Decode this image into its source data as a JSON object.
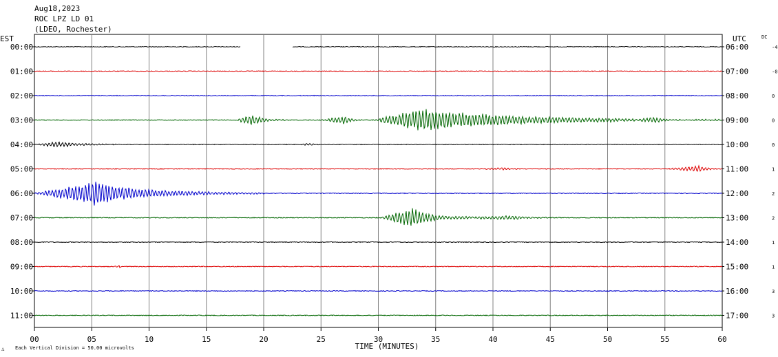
{
  "header": {
    "date": "Aug18,2023",
    "station": "ROC LPZ LD 01",
    "network": "(LDEO, Rochester)"
  },
  "left_axis_label": "EST",
  "right_axis_label": "UTC",
  "dc_label": "DC",
  "footer_note": "Each Vertical Division =   50.00 microvolts",
  "chart_data": {
    "type": "line",
    "title": "",
    "xlabel": "TIME (MINUTES)",
    "ylabel": "",
    "xlim": [
      0,
      60
    ],
    "x_ticks": [
      "00",
      "05",
      "10",
      "15",
      "20",
      "25",
      "30",
      "35",
      "40",
      "45",
      "50",
      "55",
      "60"
    ],
    "grid": true,
    "trace_colors": [
      "#000000",
      "#dd0000",
      "#0000cc",
      "#006600"
    ],
    "rows": [
      {
        "est": "00:00",
        "utc": "06:00",
        "dc": "-4",
        "color": "#000000",
        "gaps": [
          [
            18,
            22.5
          ]
        ],
        "events": []
      },
      {
        "est": "01:00",
        "utc": "07:00",
        "dc": "-0",
        "color": "#dd0000",
        "gaps": [],
        "events": []
      },
      {
        "est": "02:00",
        "utc": "08:00",
        "dc": "0",
        "color": "#0000cc",
        "gaps": [],
        "events": []
      },
      {
        "est": "03:00",
        "utc": "09:00",
        "dc": "0",
        "color": "#006600",
        "gaps": [],
        "events": [
          {
            "start": 17.5,
            "peak": 19,
            "end": 22,
            "amplitude": 0.5
          },
          {
            "start": 25,
            "peak": 27,
            "end": 29,
            "amplitude": 0.35
          },
          {
            "start": 29.5,
            "peak": 33.5,
            "end": 60,
            "amplitude": 1.0
          },
          {
            "start": 52,
            "peak": 54,
            "end": 58,
            "amplitude": 0.35
          }
        ]
      },
      {
        "est": "04:00",
        "utc": "10:00",
        "dc": "0",
        "color": "#000000",
        "gaps": [],
        "events": [
          {
            "start": 0,
            "peak": 2,
            "end": 8,
            "amplitude": 0.25
          },
          {
            "start": 23,
            "peak": 24,
            "end": 25,
            "amplitude": 0.12
          }
        ]
      },
      {
        "est": "05:00",
        "utc": "11:00",
        "dc": "1",
        "color": "#dd0000",
        "gaps": [],
        "events": [
          {
            "start": 38,
            "peak": 41,
            "end": 45,
            "amplitude": 0.1
          },
          {
            "start": 55,
            "peak": 58,
            "end": 60,
            "amplitude": 0.3
          }
        ]
      },
      {
        "est": "06:00",
        "utc": "12:00",
        "dc": "2",
        "color": "#0000cc",
        "gaps": [],
        "events": [
          {
            "start": 0,
            "peak": 5,
            "end": 20,
            "amplitude": 1.0
          },
          {
            "start": 5,
            "peak": 5.3,
            "end": 7,
            "amplitude": 0.9
          }
        ]
      },
      {
        "est": "07:00",
        "utc": "13:00",
        "dc": "2",
        "color": "#006600",
        "gaps": [],
        "events": [
          {
            "start": 30,
            "peak": 33,
            "end": 38,
            "amplitude": 0.85
          },
          {
            "start": 36,
            "peak": 41.5,
            "end": 46,
            "amplitude": 0.2
          }
        ]
      },
      {
        "est": "08:00",
        "utc": "14:00",
        "dc": "1",
        "color": "#000000",
        "gaps": [],
        "events": []
      },
      {
        "est": "09:00",
        "utc": "15:00",
        "dc": "1",
        "color": "#dd0000",
        "gaps": [],
        "events": [
          {
            "start": 7,
            "peak": 7.4,
            "end": 8,
            "amplitude": 0.15
          }
        ]
      },
      {
        "est": "10:00",
        "utc": "16:00",
        "dc": "3",
        "color": "#0000cc",
        "gaps": [],
        "events": []
      },
      {
        "est": "11:00",
        "utc": "17:00",
        "dc": "3",
        "color": "#006600",
        "gaps": [],
        "events": []
      }
    ]
  }
}
